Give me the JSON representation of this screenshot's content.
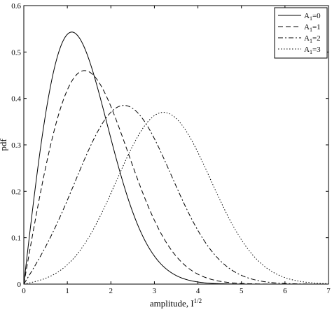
{
  "chart_data": {
    "type": "line",
    "xlabel": "amplitude, I",
    "xlabel_sup": "1/2",
    "ylabel": "pdf",
    "xlim": [
      0,
      7
    ],
    "ylim": [
      0,
      0.6
    ],
    "x_ticks": [
      0,
      1,
      2,
      3,
      4,
      5,
      6,
      7
    ],
    "y_ticks": [
      0,
      0.1,
      0.2,
      0.3,
      0.4,
      0.5,
      0.6
    ],
    "grid": false,
    "legend_position": "top-right",
    "series": [
      {
        "name": "A",
        "name_sub": "1",
        "name_suffix": "=0",
        "A": 0,
        "style": "solid",
        "peak": {
          "x": 1.1,
          "y": 0.543
        }
      },
      {
        "name": "A",
        "name_sub": "1",
        "name_suffix": "=1",
        "A": 1,
        "style": "dashed",
        "peak": {
          "x": 1.4,
          "y": 0.46
        }
      },
      {
        "name": "A",
        "name_sub": "1",
        "name_suffix": "=2",
        "A": 2,
        "style": "dashdot",
        "peak": {
          "x": 2.3,
          "y": 0.385
        }
      },
      {
        "name": "A",
        "name_sub": "1",
        "name_suffix": "=3",
        "A": 3,
        "style": "dotted",
        "peak": {
          "x": 3.2,
          "y": 0.37
        }
      }
    ]
  }
}
